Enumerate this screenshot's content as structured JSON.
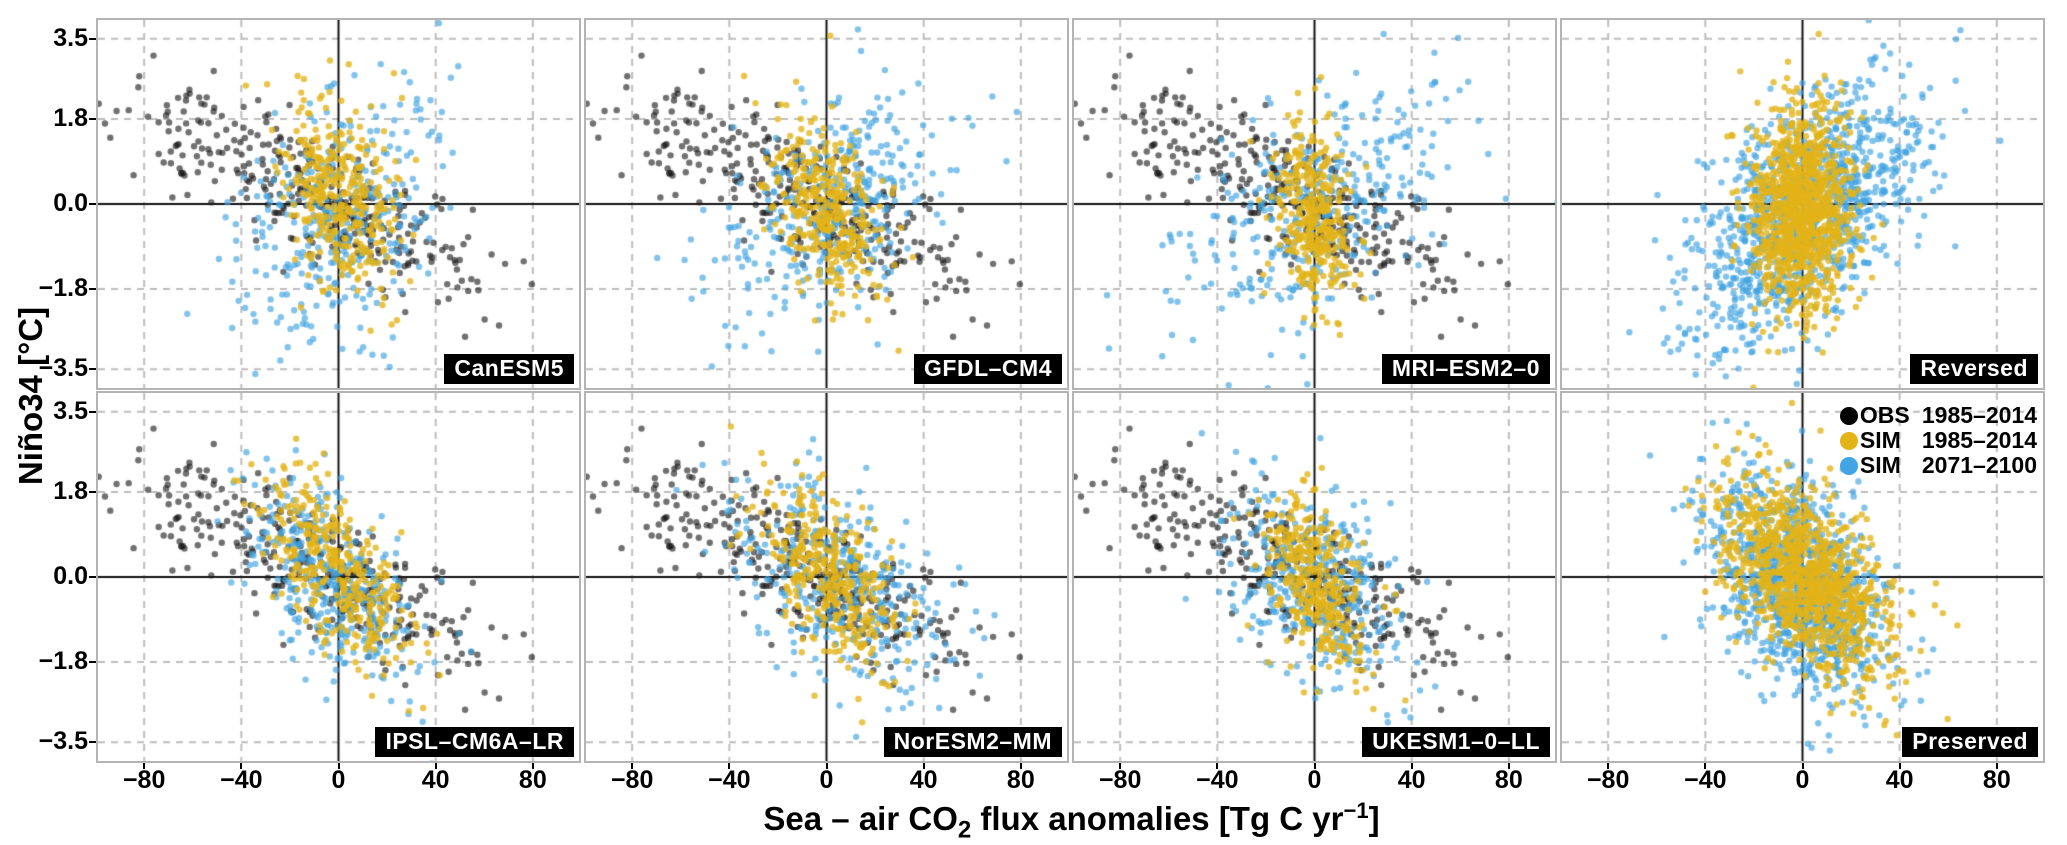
{
  "figure": {
    "ylabel": "Niño34 [°C]",
    "xlabel": {
      "pre": "Sea – air CO",
      "sub": "2",
      "mid": " flux anomalies [Tg C yr",
      "sup": "−1",
      "post": "]"
    }
  },
  "chart_data": {
    "type": "scatter",
    "note": "Eight-panel scatter figure of monthly Nino34 SST anomalies vs sea-air CO2 flux anomalies. Dense point clouds are represented by bivariate-normal generator parameters (mean, sd, correlation, count) estimated from the pixels; they are rendered procedurally with a fixed seed.",
    "xlabel_plain": "Sea – air CO2 flux anomalies [Tg C yr−1]",
    "ylabel_plain": "Niño34 [°C]",
    "xlim": [
      -99,
      99
    ],
    "ylim": [
      -3.9,
      3.9
    ],
    "xticks": {
      "values": [
        -80,
        -40,
        0,
        40,
        80
      ],
      "labels": [
        "−80",
        "−40",
        "0",
        "40",
        "80"
      ]
    },
    "yticks": {
      "values": [
        3.5,
        1.8,
        0.0,
        -1.8,
        -3.5
      ],
      "labels": [
        "3.5",
        "1.8",
        "0.0",
        "−1.8",
        "−3.5"
      ]
    },
    "grid": {
      "dashed_at_nonzero_ticks": true,
      "solid_zero_lines": true,
      "grid_color": "#bdbdbd",
      "zero_line_color": "#111111"
    },
    "legend_position": "top-right of bottom-right panel",
    "colors": {
      "obs": "#1a1a1a",
      "sim_hist": "#e3b418",
      "sim_fut": "#42a4e2"
    },
    "alphas": {
      "obs": 0.62,
      "sim_hist": 0.78,
      "sim_fut": 0.66
    },
    "point_radius": 3.2,
    "legend": [
      {
        "name": "OBS",
        "range": "1985–2014",
        "color_key": "obs"
      },
      {
        "name": "SIM",
        "range": "1985–2014",
        "color_key": "sim_hist"
      },
      {
        "name": "SIM",
        "range": "2071–2100",
        "color_key": "sim_fut"
      }
    ],
    "panels": [
      {
        "label": "CanESM5",
        "row": 0,
        "col": 0,
        "series": [
          {
            "key": "obs",
            "n": 340,
            "mean": [
              -8,
              0.2
            ],
            "sd": [
              36,
              1.15
            ],
            "rho": -0.8,
            "seed": 101
          },
          {
            "key": "sim_fut",
            "n": 360,
            "mean": [
              0,
              -0.3
            ],
            "sd": [
              20,
              1.3
            ],
            "rho": 0.35,
            "seed": 12
          },
          {
            "key": "sim_hist",
            "n": 360,
            "mean": [
              0,
              0.1
            ],
            "sd": [
              11,
              1.0
            ],
            "rho": -0.3,
            "seed": 11
          }
        ]
      },
      {
        "label": "GFDL–CM4",
        "row": 0,
        "col": 1,
        "series": [
          {
            "key": "obs",
            "n": 340,
            "mean": [
              -8,
              0.2
            ],
            "sd": [
              36,
              1.15
            ],
            "rho": -0.8,
            "seed": 101
          },
          {
            "key": "sim_fut",
            "n": 360,
            "mean": [
              2,
              0.0
            ],
            "sd": [
              23,
              1.2
            ],
            "rho": 0.5,
            "seed": 22
          },
          {
            "key": "sim_hist",
            "n": 360,
            "mean": [
              0,
              -0.1
            ],
            "sd": [
              12,
              0.95
            ],
            "rho": -0.35,
            "seed": 21
          }
        ]
      },
      {
        "label": "MRI–ESM2–0",
        "row": 0,
        "col": 2,
        "series": [
          {
            "key": "obs",
            "n": 340,
            "mean": [
              -8,
              0.2
            ],
            "sd": [
              36,
              1.15
            ],
            "rho": -0.8,
            "seed": 101
          },
          {
            "key": "sim_fut",
            "n": 360,
            "mean": [
              0,
              -0.1
            ],
            "sd": [
              27,
              1.35
            ],
            "rho": 0.55,
            "seed": 32
          },
          {
            "key": "sim_hist",
            "n": 360,
            "mean": [
              0,
              -0.25
            ],
            "sd": [
              8,
              1.0
            ],
            "rho": -0.25,
            "seed": 31
          }
        ]
      },
      {
        "label": "Reversed",
        "row": 0,
        "col": 3,
        "series": [
          {
            "key": "sim_fut",
            "n": 1080,
            "mean": [
              0,
              -0.2
            ],
            "sd": [
              24,
              1.35
            ],
            "rho": 0.55,
            "seed": 42
          },
          {
            "key": "sim_hist",
            "n": 1080,
            "mean": [
              0,
              -0.1
            ],
            "sd": [
              10,
              1.1
            ],
            "rho": 0.05,
            "seed": 41
          }
        ]
      },
      {
        "label": "IPSL–CM6A–LR",
        "row": 1,
        "col": 0,
        "series": [
          {
            "key": "obs",
            "n": 340,
            "mean": [
              -8,
              0.2
            ],
            "sd": [
              36,
              1.15
            ],
            "rho": -0.8,
            "seed": 101
          },
          {
            "key": "sim_fut",
            "n": 360,
            "mean": [
              -2,
              -0.1
            ],
            "sd": [
              17,
              1.15
            ],
            "rho": -0.55,
            "seed": 52
          },
          {
            "key": "sim_hist",
            "n": 360,
            "mean": [
              -2,
              0.1
            ],
            "sd": [
              15,
              1.05
            ],
            "rho": -0.65,
            "seed": 51
          }
        ]
      },
      {
        "label": "NorESM2–MM",
        "row": 1,
        "col": 1,
        "series": [
          {
            "key": "obs",
            "n": 340,
            "mean": [
              -8,
              0.2
            ],
            "sd": [
              36,
              1.15
            ],
            "rho": -0.8,
            "seed": 101
          },
          {
            "key": "sim_fut",
            "n": 360,
            "mean": [
              6,
              -0.2
            ],
            "sd": [
              22,
              1.15
            ],
            "rho": -0.5,
            "seed": 62
          },
          {
            "key": "sim_hist",
            "n": 360,
            "mean": [
              0,
              0.0
            ],
            "sd": [
              15,
              1.0
            ],
            "rho": -0.6,
            "seed": 61
          }
        ]
      },
      {
        "label": "UKESM1–0–LL",
        "row": 1,
        "col": 2,
        "series": [
          {
            "key": "obs",
            "n": 340,
            "mean": [
              -8,
              0.2
            ],
            "sd": [
              36,
              1.15
            ],
            "rho": -0.8,
            "seed": 101
          },
          {
            "key": "sim_fut",
            "n": 360,
            "mean": [
              0,
              -0.15
            ],
            "sd": [
              18,
              1.1
            ],
            "rho": -0.35,
            "seed": 72
          },
          {
            "key": "sim_hist",
            "n": 360,
            "mean": [
              0,
              -0.05
            ],
            "sd": [
              11,
              0.95
            ],
            "rho": -0.45,
            "seed": 71
          }
        ]
      },
      {
        "label": "Preserved",
        "row": 1,
        "col": 3,
        "has_legend": true,
        "series": [
          {
            "key": "sim_fut",
            "n": 1080,
            "mean": [
              -2,
              -0.2
            ],
            "sd": [
              18,
              1.15
            ],
            "rho": -0.45,
            "seed": 82
          },
          {
            "key": "sim_hist",
            "n": 1080,
            "mean": [
              2,
              0.0
            ],
            "sd": [
              17,
              1.05
            ],
            "rho": -0.55,
            "seed": 81
          }
        ]
      }
    ]
  }
}
